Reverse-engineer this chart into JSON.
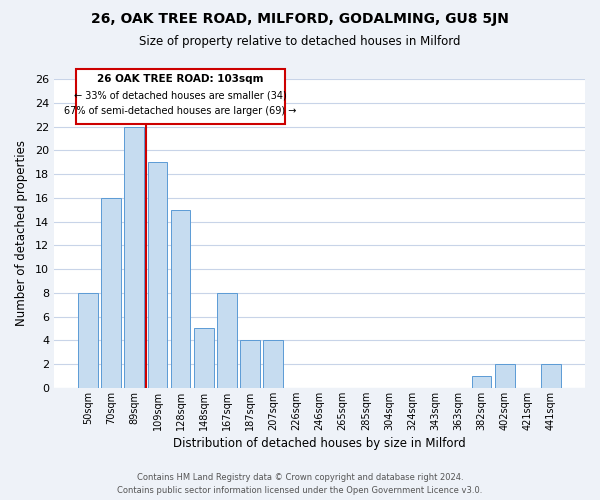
{
  "title1": "26, OAK TREE ROAD, MILFORD, GODALMING, GU8 5JN",
  "title2": "Size of property relative to detached houses in Milford",
  "xlabel": "Distribution of detached houses by size in Milford",
  "ylabel": "Number of detached properties",
  "bar_labels": [
    "50sqm",
    "70sqm",
    "89sqm",
    "109sqm",
    "128sqm",
    "148sqm",
    "167sqm",
    "187sqm",
    "207sqm",
    "226sqm",
    "246sqm",
    "265sqm",
    "285sqm",
    "304sqm",
    "324sqm",
    "343sqm",
    "363sqm",
    "382sqm",
    "402sqm",
    "421sqm",
    "441sqm"
  ],
  "bar_heights": [
    8,
    16,
    22,
    19,
    15,
    5,
    8,
    4,
    4,
    0,
    0,
    0,
    0,
    0,
    0,
    0,
    0,
    1,
    2,
    0,
    2
  ],
  "bar_color": "#c6dcf0",
  "bar_edge_color": "#5b9bd5",
  "vline_color": "#cc0000",
  "vline_x_idx": 2.5,
  "ylim": [
    0,
    26
  ],
  "yticks": [
    0,
    2,
    4,
    6,
    8,
    10,
    12,
    14,
    16,
    18,
    20,
    22,
    24,
    26
  ],
  "annotation_title": "26 OAK TREE ROAD: 103sqm",
  "annotation_line1": "← 33% of detached houses are smaller (34)",
  "annotation_line2": "67% of semi-detached houses are larger (69) →",
  "annotation_box_color": "#ffffff",
  "annotation_box_edge": "#cc0000",
  "footer1": "Contains HM Land Registry data © Crown copyright and database right 2024.",
  "footer2": "Contains public sector information licensed under the Open Government Licence v3.0.",
  "bg_color": "#eef2f8",
  "plot_bg_color": "#ffffff",
  "grid_color": "#c8d4e8"
}
